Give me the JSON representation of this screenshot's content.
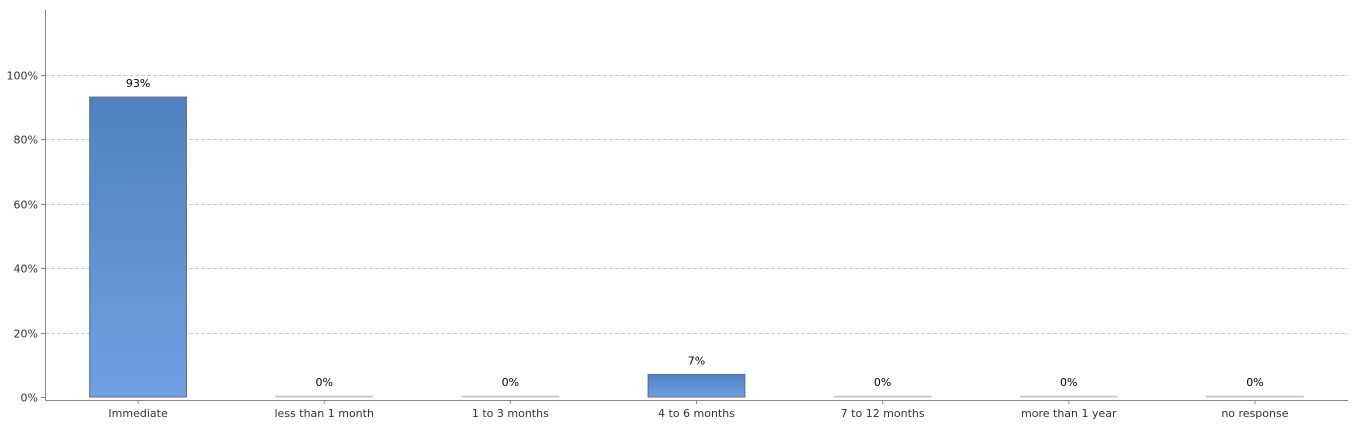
{
  "chart_data": {
    "type": "bar",
    "categories": [
      "Immediate",
      "less than 1 month",
      "1 to 3 months",
      "4 to 6 months",
      "7 to 12 months",
      "more than 1 year",
      "no response"
    ],
    "values": [
      93,
      0,
      0,
      7,
      0,
      0,
      0
    ],
    "data_labels": [
      "93%",
      "0%",
      "0%",
      "7%",
      "0%",
      "0%",
      "0%"
    ],
    "y_ticks": [
      0,
      20,
      40,
      60,
      80,
      100
    ],
    "y_tick_labels": [
      "0%",
      "20%",
      "40%",
      "60%",
      "80%",
      "100%"
    ],
    "ylim": [
      0,
      120
    ],
    "grid": true,
    "legend": "none",
    "colors": {
      "bar_top": "#4f82c0",
      "bar_bottom": "#6fa0e4",
      "bar_outline": "#5a6e8a",
      "grid": "#cccccc",
      "axis": "#888888"
    }
  }
}
